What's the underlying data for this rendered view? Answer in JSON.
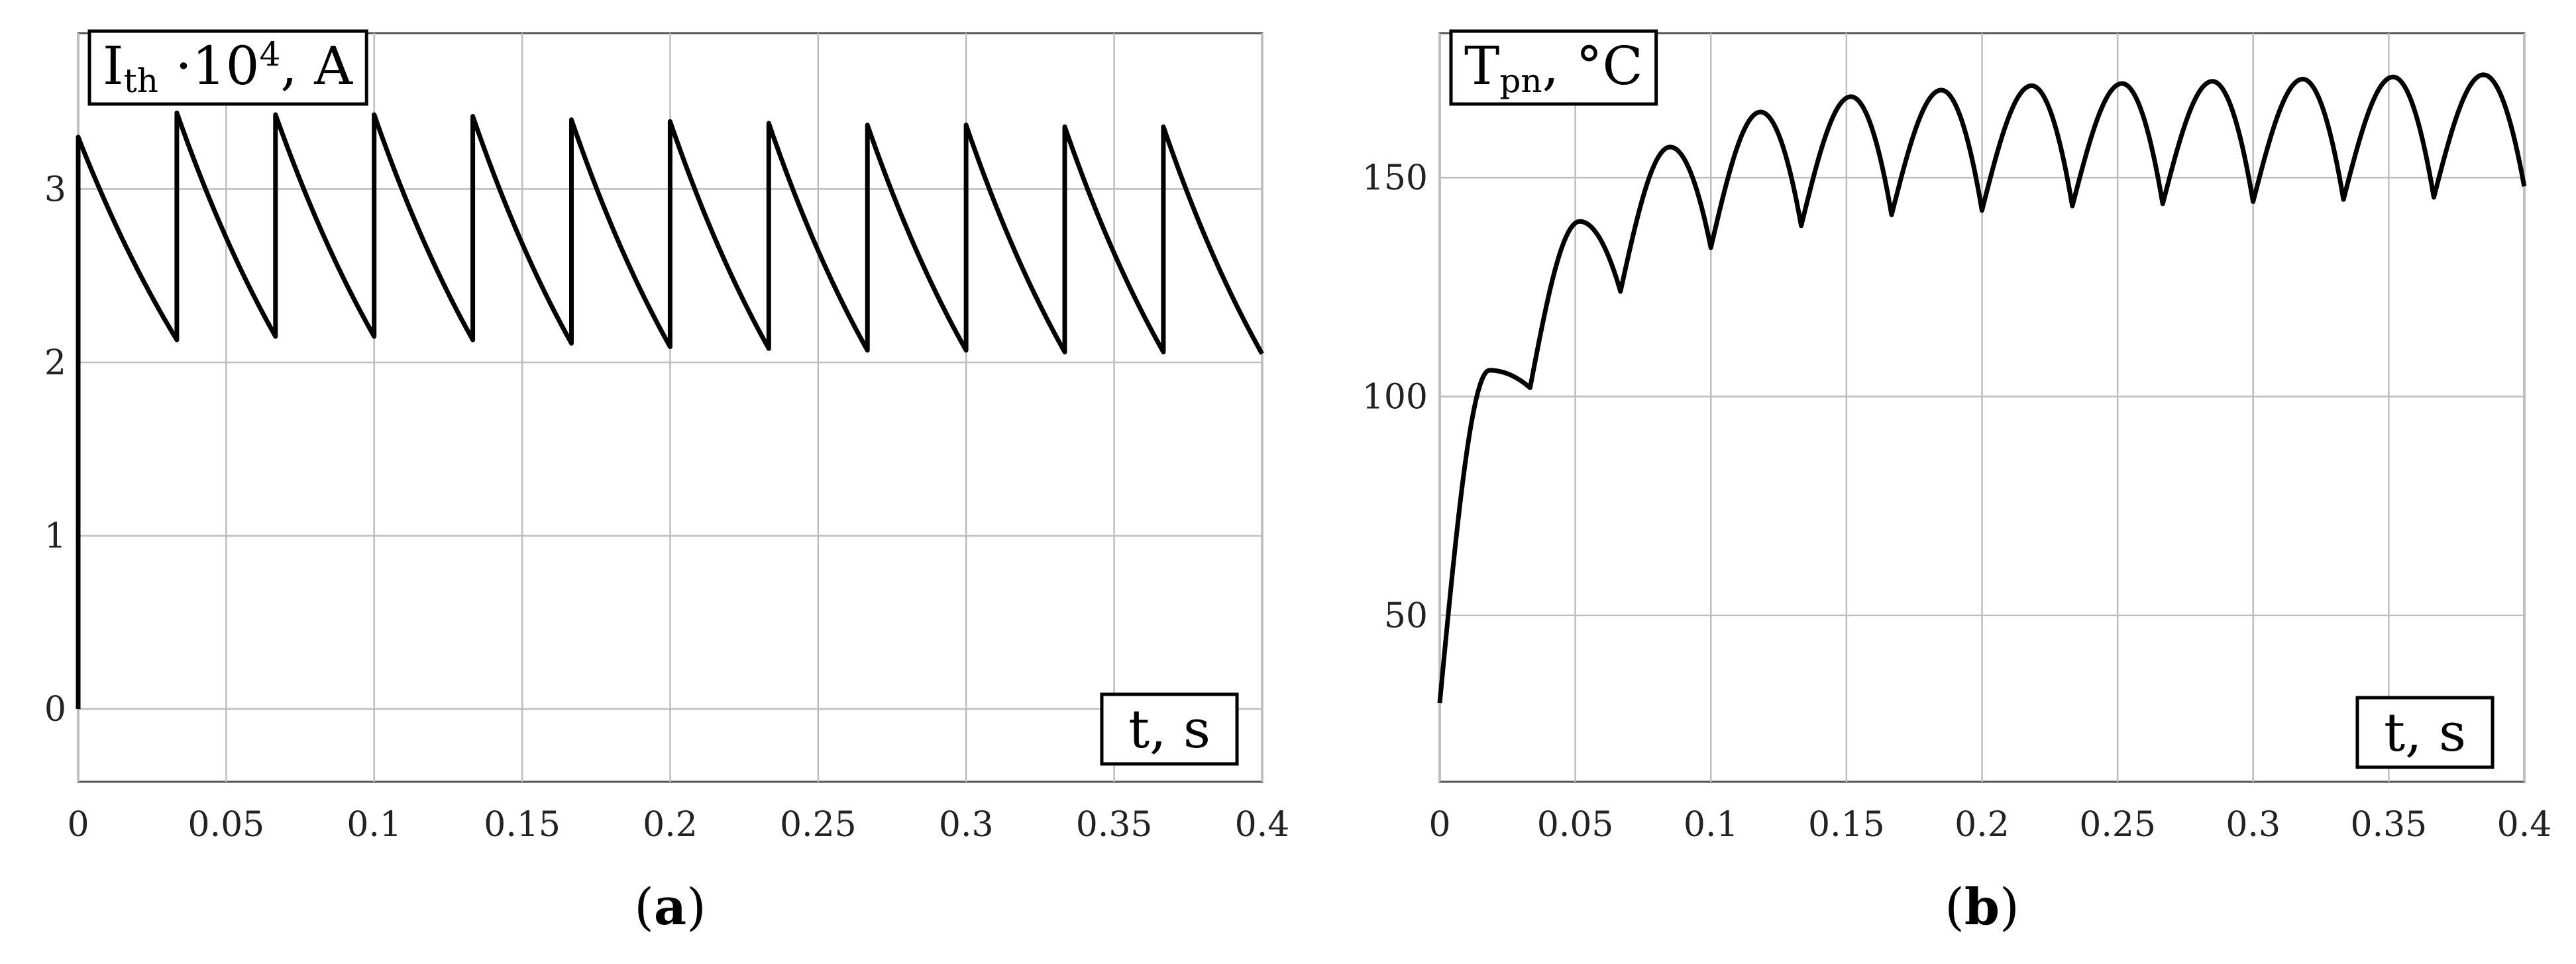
{
  "chart_data": [
    {
      "type": "line",
      "panel_label": "a",
      "ylabel": {
        "base": "I",
        "sub": "th",
        "rest": " ·10",
        "sup": "4",
        "unit": ", A"
      },
      "xlabel": "t, s",
      "xlim": [
        0,
        0.4
      ],
      "ylim": [
        -0.42,
        3.9
      ],
      "xticks": [
        0,
        0.05,
        0.1,
        0.15,
        0.2,
        0.25,
        0.3,
        0.35,
        0.4
      ],
      "xtick_labels": [
        "0",
        "0.05",
        "0.1",
        "0.15",
        "0.2",
        "0.25",
        "0.3",
        "0.35",
        "0.4"
      ],
      "yticks": [
        0,
        1,
        2,
        3
      ],
      "ytick_labels": [
        "0",
        "1",
        "2",
        "3"
      ],
      "grid": true,
      "series": [
        {
          "period": 0.03333,
          "start_value": 3.3,
          "peaks": [
            3.3,
            3.44,
            3.43,
            3.43,
            3.42,
            3.4,
            3.39,
            3.38,
            3.37,
            3.37,
            3.36,
            3.36
          ],
          "troughs": [
            2.13,
            2.15,
            2.15,
            2.13,
            2.11,
            2.09,
            2.08,
            2.07,
            2.07,
            2.06,
            2.06,
            2.05
          ]
        }
      ]
    },
    {
      "type": "line",
      "panel_label": "b",
      "ylabel": {
        "base": "T",
        "sub": "pn",
        "rest": "",
        "sup": "",
        "unit": ", °C"
      },
      "xlabel": "t, s",
      "xlim": [
        0,
        0.4
      ],
      "ylim": [
        12,
        183
      ],
      "xticks": [
        0,
        0.05,
        0.1,
        0.15,
        0.2,
        0.25,
        0.3,
        0.35,
        0.4
      ],
      "xtick_labels": [
        "0",
        "0.05",
        "0.1",
        "0.15",
        "0.2",
        "0.25",
        "0.3",
        "0.35",
        "0.4"
      ],
      "yticks": [
        50,
        100,
        150
      ],
      "ytick_labels": [
        "50",
        "100",
        "150"
      ],
      "grid": true,
      "series": [
        {
          "period": 0.03333,
          "start_value": 30,
          "peaks": [
            106,
            140,
            157,
            165,
            168.5,
            170,
            171,
            171.5,
            172,
            172.5,
            173,
            173.5
          ],
          "troughs": [
            102,
            124,
            134,
            139,
            141.5,
            142.5,
            143.5,
            144,
            144.5,
            145,
            145.5,
            148
          ]
        }
      ]
    }
  ]
}
